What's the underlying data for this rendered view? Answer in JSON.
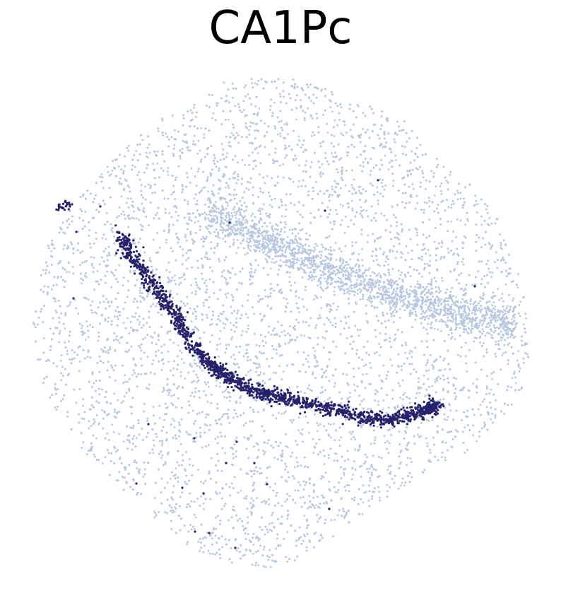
{
  "chart_data": {
    "type": "scatter",
    "title": "CA1Pc",
    "axes_visible": false,
    "grid": false,
    "legend": "none",
    "colors": {
      "background_cells": "#b8c7e0",
      "highlighted_cells": "#25226b"
    },
    "series": [
      {
        "role": "background",
        "color": "#b8c7e0",
        "points": [
          [
            0.05,
            0.45
          ],
          [
            0.08,
            0.38
          ],
          [
            0.12,
            0.3
          ],
          [
            0.18,
            0.22
          ],
          [
            0.25,
            0.16
          ],
          [
            0.32,
            0.11
          ],
          [
            0.4,
            0.08
          ],
          [
            0.48,
            0.07
          ],
          [
            0.56,
            0.09
          ],
          [
            0.64,
            0.13
          ],
          [
            0.72,
            0.19
          ],
          [
            0.8,
            0.26
          ],
          [
            0.86,
            0.34
          ],
          [
            0.91,
            0.42
          ],
          [
            0.95,
            0.5
          ],
          [
            0.96,
            0.56
          ],
          [
            0.93,
            0.62
          ],
          [
            0.88,
            0.67
          ],
          [
            0.82,
            0.71
          ],
          [
            0.75,
            0.75
          ],
          [
            0.68,
            0.8
          ],
          [
            0.6,
            0.85
          ],
          [
            0.52,
            0.9
          ],
          [
            0.44,
            0.95
          ],
          [
            0.36,
            0.92
          ],
          [
            0.28,
            0.86
          ],
          [
            0.2,
            0.78
          ],
          [
            0.13,
            0.69
          ],
          [
            0.08,
            0.6
          ],
          [
            0.05,
            0.52
          ],
          [
            0.3,
            0.5
          ],
          [
            0.4,
            0.4
          ],
          [
            0.5,
            0.3
          ],
          [
            0.6,
            0.4
          ],
          [
            0.7,
            0.5
          ],
          [
            0.45,
            0.65
          ],
          [
            0.35,
            0.7
          ],
          [
            0.25,
            0.6
          ],
          [
            0.55,
            0.2
          ],
          [
            0.65,
            0.28
          ]
        ]
      },
      {
        "role": "CA1Pc",
        "color": "#25226b",
        "points": [
          [
            0.18,
            0.32
          ],
          [
            0.2,
            0.36
          ],
          [
            0.23,
            0.4
          ],
          [
            0.26,
            0.44
          ],
          [
            0.29,
            0.48
          ],
          [
            0.31,
            0.52
          ],
          [
            0.34,
            0.56
          ],
          [
            0.37,
            0.59
          ],
          [
            0.4,
            0.61
          ],
          [
            0.44,
            0.63
          ],
          [
            0.48,
            0.64
          ],
          [
            0.52,
            0.65
          ],
          [
            0.56,
            0.66
          ],
          [
            0.6,
            0.67
          ],
          [
            0.64,
            0.68
          ],
          [
            0.68,
            0.69
          ],
          [
            0.72,
            0.69
          ],
          [
            0.76,
            0.68
          ],
          [
            0.79,
            0.67
          ],
          [
            0.81,
            0.66
          ]
        ]
      }
    ]
  }
}
